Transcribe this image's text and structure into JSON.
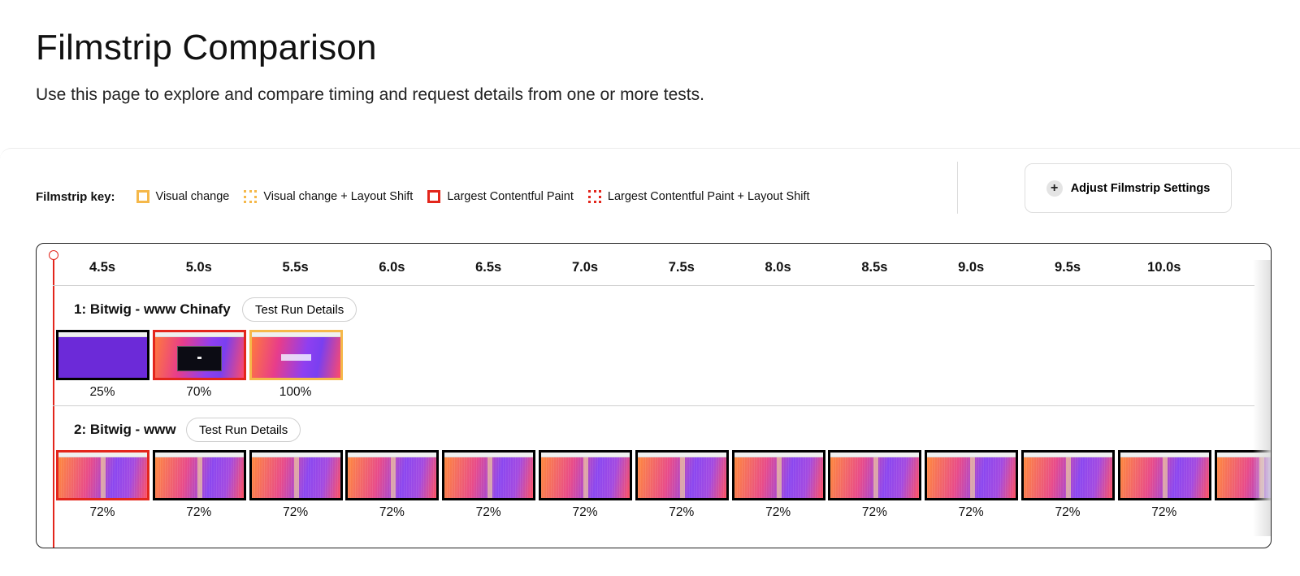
{
  "page": {
    "title": "Filmstrip Comparison",
    "subtitle": "Use this page to explore and compare timing and request details from one or more tests."
  },
  "key": {
    "label": "Filmstrip key:",
    "items": [
      {
        "label": "Visual change",
        "style": "solid",
        "color": "#f5b84a"
      },
      {
        "label": "Visual change + Layout Shift",
        "style": "dotted",
        "color": "#f5b84a"
      },
      {
        "label": "Largest Contentful Paint",
        "style": "solid",
        "color": "#e3261c"
      },
      {
        "label": "Largest Contentful Paint + Layout Shift",
        "style": "dotted",
        "color": "#e3261c"
      }
    ]
  },
  "adjust_button": {
    "label": "Adjust Filmstrip Settings",
    "icon": "plus-icon"
  },
  "timeline": {
    "ticks": [
      "4.5s",
      "5.0s",
      "5.5s",
      "6.0s",
      "6.5s",
      "7.0s",
      "7.5s",
      "8.0s",
      "8.5s",
      "9.0s",
      "9.5s",
      "10.0s"
    ]
  },
  "rows": [
    {
      "title": "1: Bitwig - www Chinafy",
      "details_label": "Test Run Details",
      "frames": [
        {
          "percent": "25%",
          "state": "plain",
          "content": "purple"
        },
        {
          "percent": "70%",
          "state": "lcp",
          "content": "gradient-dark-box"
        },
        {
          "percent": "100%",
          "state": "vc",
          "content": "gradient-light-box"
        }
      ]
    },
    {
      "title": "2: Bitwig - www",
      "details_label": "Test Run Details",
      "frames": [
        {
          "percent": "72%",
          "state": "lcp",
          "content": "gradient"
        },
        {
          "percent": "72%",
          "state": "plain",
          "content": "gradient"
        },
        {
          "percent": "72%",
          "state": "plain",
          "content": "gradient"
        },
        {
          "percent": "72%",
          "state": "plain",
          "content": "gradient"
        },
        {
          "percent": "72%",
          "state": "plain",
          "content": "gradient"
        },
        {
          "percent": "72%",
          "state": "plain",
          "content": "gradient"
        },
        {
          "percent": "72%",
          "state": "plain",
          "content": "gradient"
        },
        {
          "percent": "72%",
          "state": "plain",
          "content": "gradient"
        },
        {
          "percent": "72%",
          "state": "plain",
          "content": "gradient"
        },
        {
          "percent": "72%",
          "state": "plain",
          "content": "gradient"
        },
        {
          "percent": "72%",
          "state": "plain",
          "content": "gradient"
        },
        {
          "percent": "72%",
          "state": "plain",
          "content": "gradient"
        },
        {
          "percent": "",
          "state": "plain",
          "content": "gradient"
        }
      ]
    }
  ]
}
